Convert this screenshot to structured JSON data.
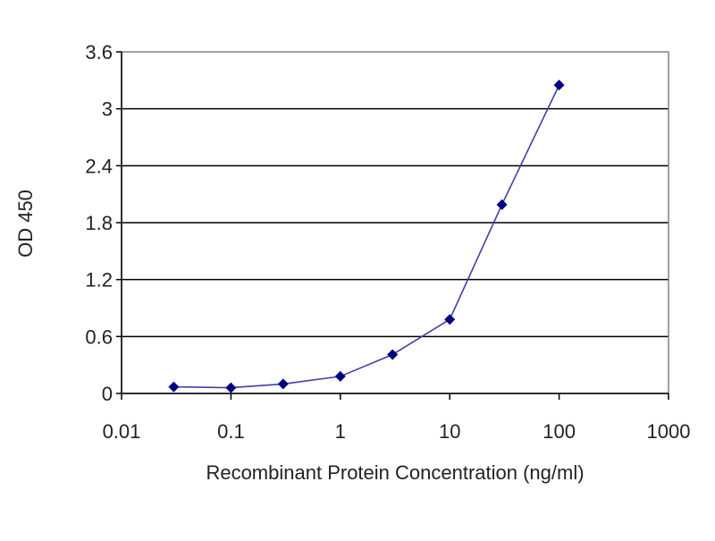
{
  "chart_data": {
    "type": "line",
    "xlabel": "Recombinant Protein Concentration (ng/ml)",
    "ylabel": "OD 450",
    "x_scale": "log",
    "xlim": [
      0.01,
      1000
    ],
    "ylim": [
      0,
      3.6
    ],
    "x_ticks": [
      "0.01",
      "0.1",
      "1",
      "10",
      "100",
      "1000"
    ],
    "y_ticks": [
      "0",
      "0.6",
      "1.2",
      "1.8",
      "2.4",
      "3",
      "3.6"
    ],
    "grid": "horizontal",
    "series": [
      {
        "x": [
          0.03,
          0.1,
          0.3,
          1,
          3,
          10,
          30,
          100
        ],
        "values": [
          0.07,
          0.06,
          0.1,
          0.18,
          0.41,
          0.78,
          1.99,
          3.25
        ]
      }
    ],
    "colors": {
      "line": "#3f3fa8",
      "marker": "#000080",
      "grid": "#000000",
      "frame": "#808080"
    }
  }
}
